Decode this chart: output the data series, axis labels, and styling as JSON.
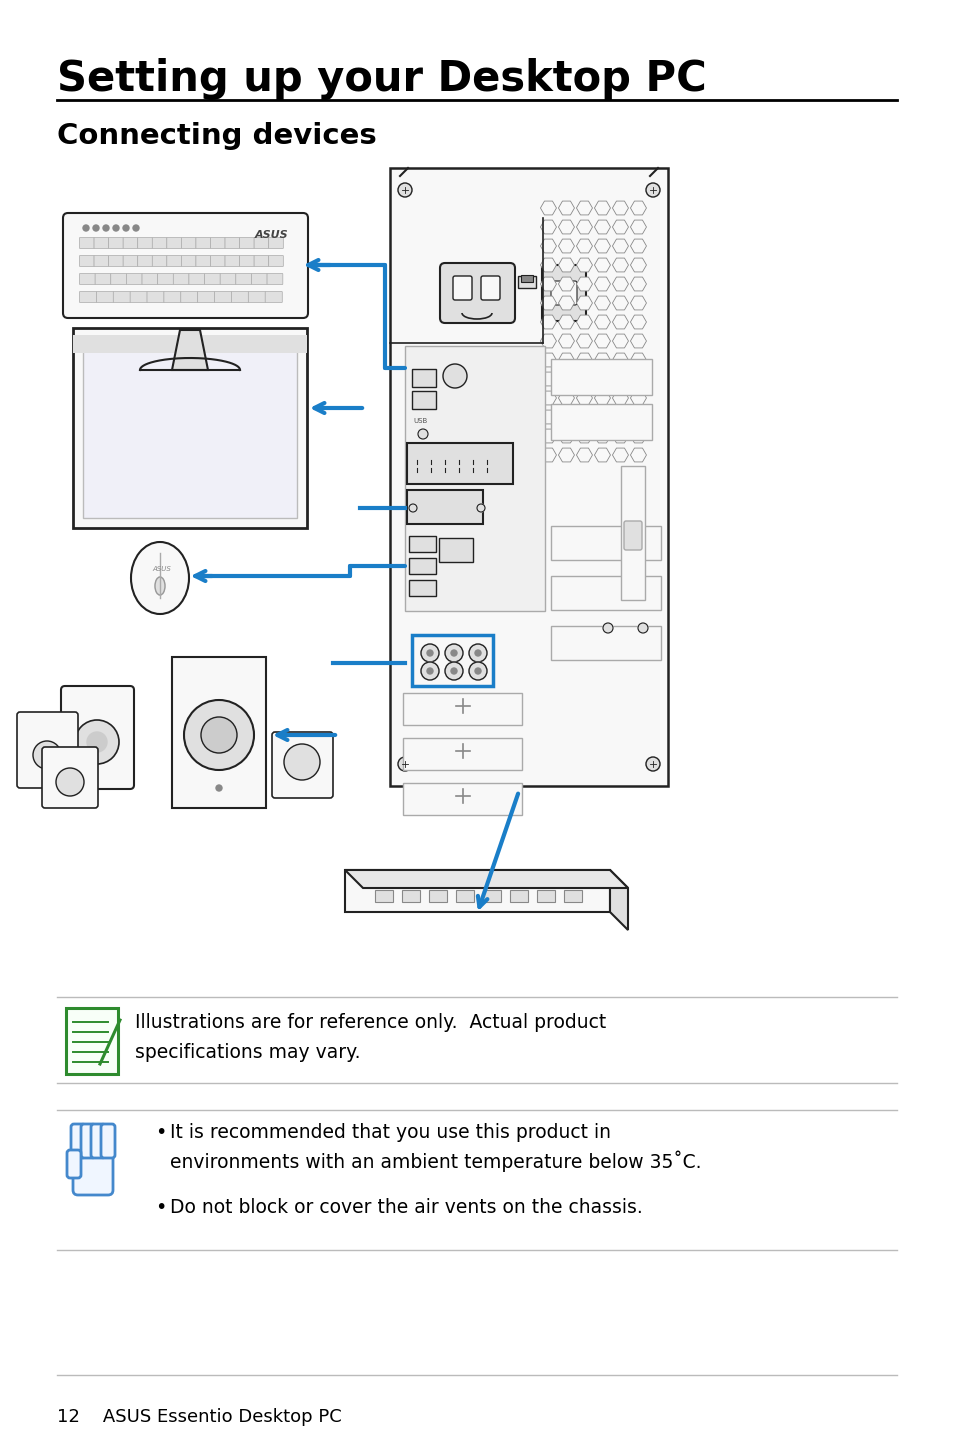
{
  "title": "Setting up your Desktop PC",
  "subtitle": "Connecting devices",
  "note1_text_line1": "Illustrations are for reference only.  Actual product",
  "note1_text_line2": "specifications may vary.",
  "note2_bullet1_line1": "It is recommended that you use this product in",
  "note2_bullet1_line2": "environments with an ambient temperature below 35˚C.",
  "note2_bullet2": "Do not block or cover the air vents on the chassis.",
  "footer_text": "12    ASUS Essentio Desktop PC",
  "bg_color": "#ffffff",
  "text_color": "#000000",
  "line_color": "#bbbbbb",
  "title_color": "#000000",
  "arrow_color": "#1a7ec8",
  "note_icon1_color": "#2e8b2e",
  "note_icon2_color": "#4488cc",
  "draw_color": "#222222",
  "draw_light": "#f8f8f8",
  "draw_mid": "#e0e0e0"
}
